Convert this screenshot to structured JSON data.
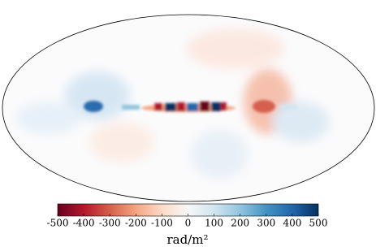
{
  "colorbar": {
    "label": "rad/m²",
    "lim": [
      -500,
      500
    ],
    "ticks": [
      -500,
      -400,
      -300,
      -200,
      -100,
      0,
      100,
      200,
      300,
      400,
      500
    ],
    "colors": [
      "#67001f",
      "#b2182b",
      "#d6604d",
      "#f4a582",
      "#fddbc7",
      "#f7f7f7",
      "#d1e5f0",
      "#92c5de",
      "#4393c3",
      "#2166ac",
      "#053061"
    ]
  }
}
